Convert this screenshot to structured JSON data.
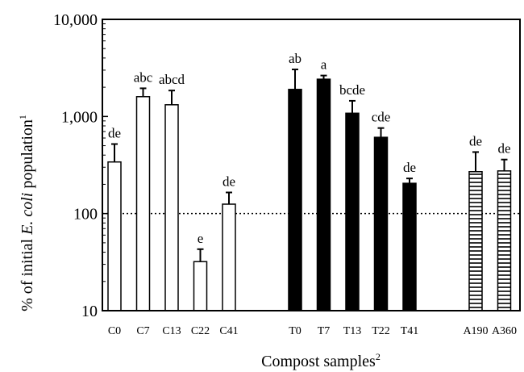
{
  "chart_data": {
    "type": "bar",
    "title": "",
    "xlabel": "Compost samples",
    "xlabel_sup": "2",
    "ylabel_prefix": "% of initial ",
    "ylabel_italic": "E. coli",
    "ylabel_suffix": " population",
    "ylabel_sup": "1",
    "yscale": "log",
    "ylim": [
      10,
      10000
    ],
    "yticks": [
      {
        "value": 10,
        "label": "10"
      },
      {
        "value": 100,
        "label": "100"
      },
      {
        "value": 1000,
        "label": "1,000"
      },
      {
        "value": 10000,
        "label": "10,000"
      }
    ],
    "reference_line": 100,
    "groups": [
      {
        "fill": "open",
        "bars": [
          {
            "label": "C0",
            "value": 340,
            "error": 520,
            "sig": "de"
          },
          {
            "label": "C7",
            "value": 1600,
            "error": 1950,
            "sig": "abc"
          },
          {
            "label": "C13",
            "value": 1320,
            "error": 1850,
            "sig": "abcd"
          },
          {
            "label": "C22",
            "value": 32,
            "error": 43,
            "sig": "e"
          },
          {
            "label": "C41",
            "value": 125,
            "error": 165,
            "sig": "de"
          }
        ]
      },
      {
        "fill": "solid",
        "bars": [
          {
            "label": "T0",
            "value": 1900,
            "error": 3050,
            "sig": "ab"
          },
          {
            "label": "T7",
            "value": 2420,
            "error": 2640,
            "sig": "a"
          },
          {
            "label": "T13",
            "value": 1080,
            "error": 1450,
            "sig": "bcde"
          },
          {
            "label": "T22",
            "value": 610,
            "error": 760,
            "sig": "cde"
          },
          {
            "label": "T41",
            "value": 205,
            "error": 230,
            "sig": "de"
          }
        ]
      },
      {
        "fill": "hatched",
        "bars": [
          {
            "label": "A190",
            "value": 270,
            "error": 430,
            "sig": "de"
          },
          {
            "label": "A360",
            "value": 275,
            "error": 360,
            "sig": "de"
          }
        ]
      }
    ],
    "colors": {
      "ink": "#000000",
      "background": "#ffffff"
    },
    "grid": false,
    "legend": "none"
  }
}
